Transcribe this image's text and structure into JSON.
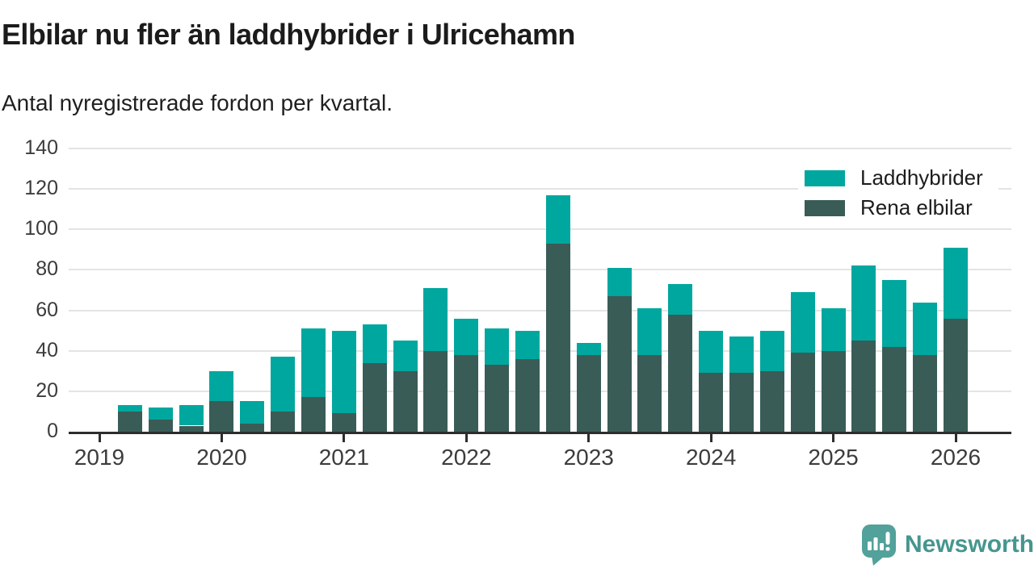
{
  "header": {
    "title": "Elbilar nu fler än laddhybrider i Ulricehamn",
    "subtitle": "Antal nyregistrerade fordon per kvartal."
  },
  "chart_data": {
    "type": "bar",
    "stacked": true,
    "title": "Elbilar nu fler än laddhybrider i Ulricehamn",
    "subtitle": "Antal nyregistrerade fordon per kvartal.",
    "xlabel": "",
    "ylabel": "",
    "ylim": [
      0,
      140
    ],
    "y_ticks": [
      0,
      20,
      40,
      60,
      80,
      100,
      120,
      140
    ],
    "x_tick_labels": [
      "2019",
      "2020",
      "2021",
      "2022",
      "2023",
      "2024",
      "2025",
      "2026"
    ],
    "grid": "horizontal",
    "legend_position": "top-right",
    "categories": [
      "2019 Q2",
      "2019 Q3",
      "2019 Q4",
      "2020 Q1",
      "2020 Q2",
      "2020 Q3",
      "2020 Q4",
      "2021 Q1",
      "2021 Q2",
      "2021 Q3",
      "2021 Q4",
      "2022 Q1",
      "2022 Q2",
      "2022 Q3",
      "2022 Q4",
      "2023 Q1",
      "2023 Q2",
      "2023 Q3",
      "2023 Q4",
      "2024 Q1",
      "2024 Q2",
      "2024 Q3",
      "2024 Q4",
      "2025 Q1",
      "2025 Q2",
      "2025 Q3",
      "2025 Q4",
      "2026 Q1"
    ],
    "series": [
      {
        "name": "Laddhybrider",
        "color": "#00a79e",
        "stack_position": "top",
        "values": [
          3,
          6,
          10,
          15,
          11,
          27,
          34,
          41,
          19,
          15,
          31,
          18,
          18,
          14,
          24,
          6,
          14,
          23,
          15,
          21,
          18,
          20,
          30,
          21,
          37,
          33,
          26,
          35
        ]
      },
      {
        "name": "Rena elbilar",
        "color": "#3a5c57",
        "stack_position": "bottom",
        "values": [
          10,
          6,
          3,
          15,
          4,
          10,
          17,
          9,
          34,
          30,
          40,
          38,
          33,
          36,
          93,
          38,
          67,
          38,
          58,
          29,
          29,
          30,
          39,
          40,
          45,
          42,
          38,
          56
        ]
      }
    ],
    "totals": [
      13,
      12,
      13,
      30,
      15,
      37,
      51,
      50,
      53,
      45,
      71,
      56,
      51,
      50,
      117,
      44,
      81,
      61,
      73,
      50,
      47,
      50,
      69,
      61,
      82,
      75,
      64,
      91
    ]
  },
  "brand": {
    "name": "Newsworthy",
    "text_color": "#45968f",
    "icon_color": "#52a19a"
  }
}
